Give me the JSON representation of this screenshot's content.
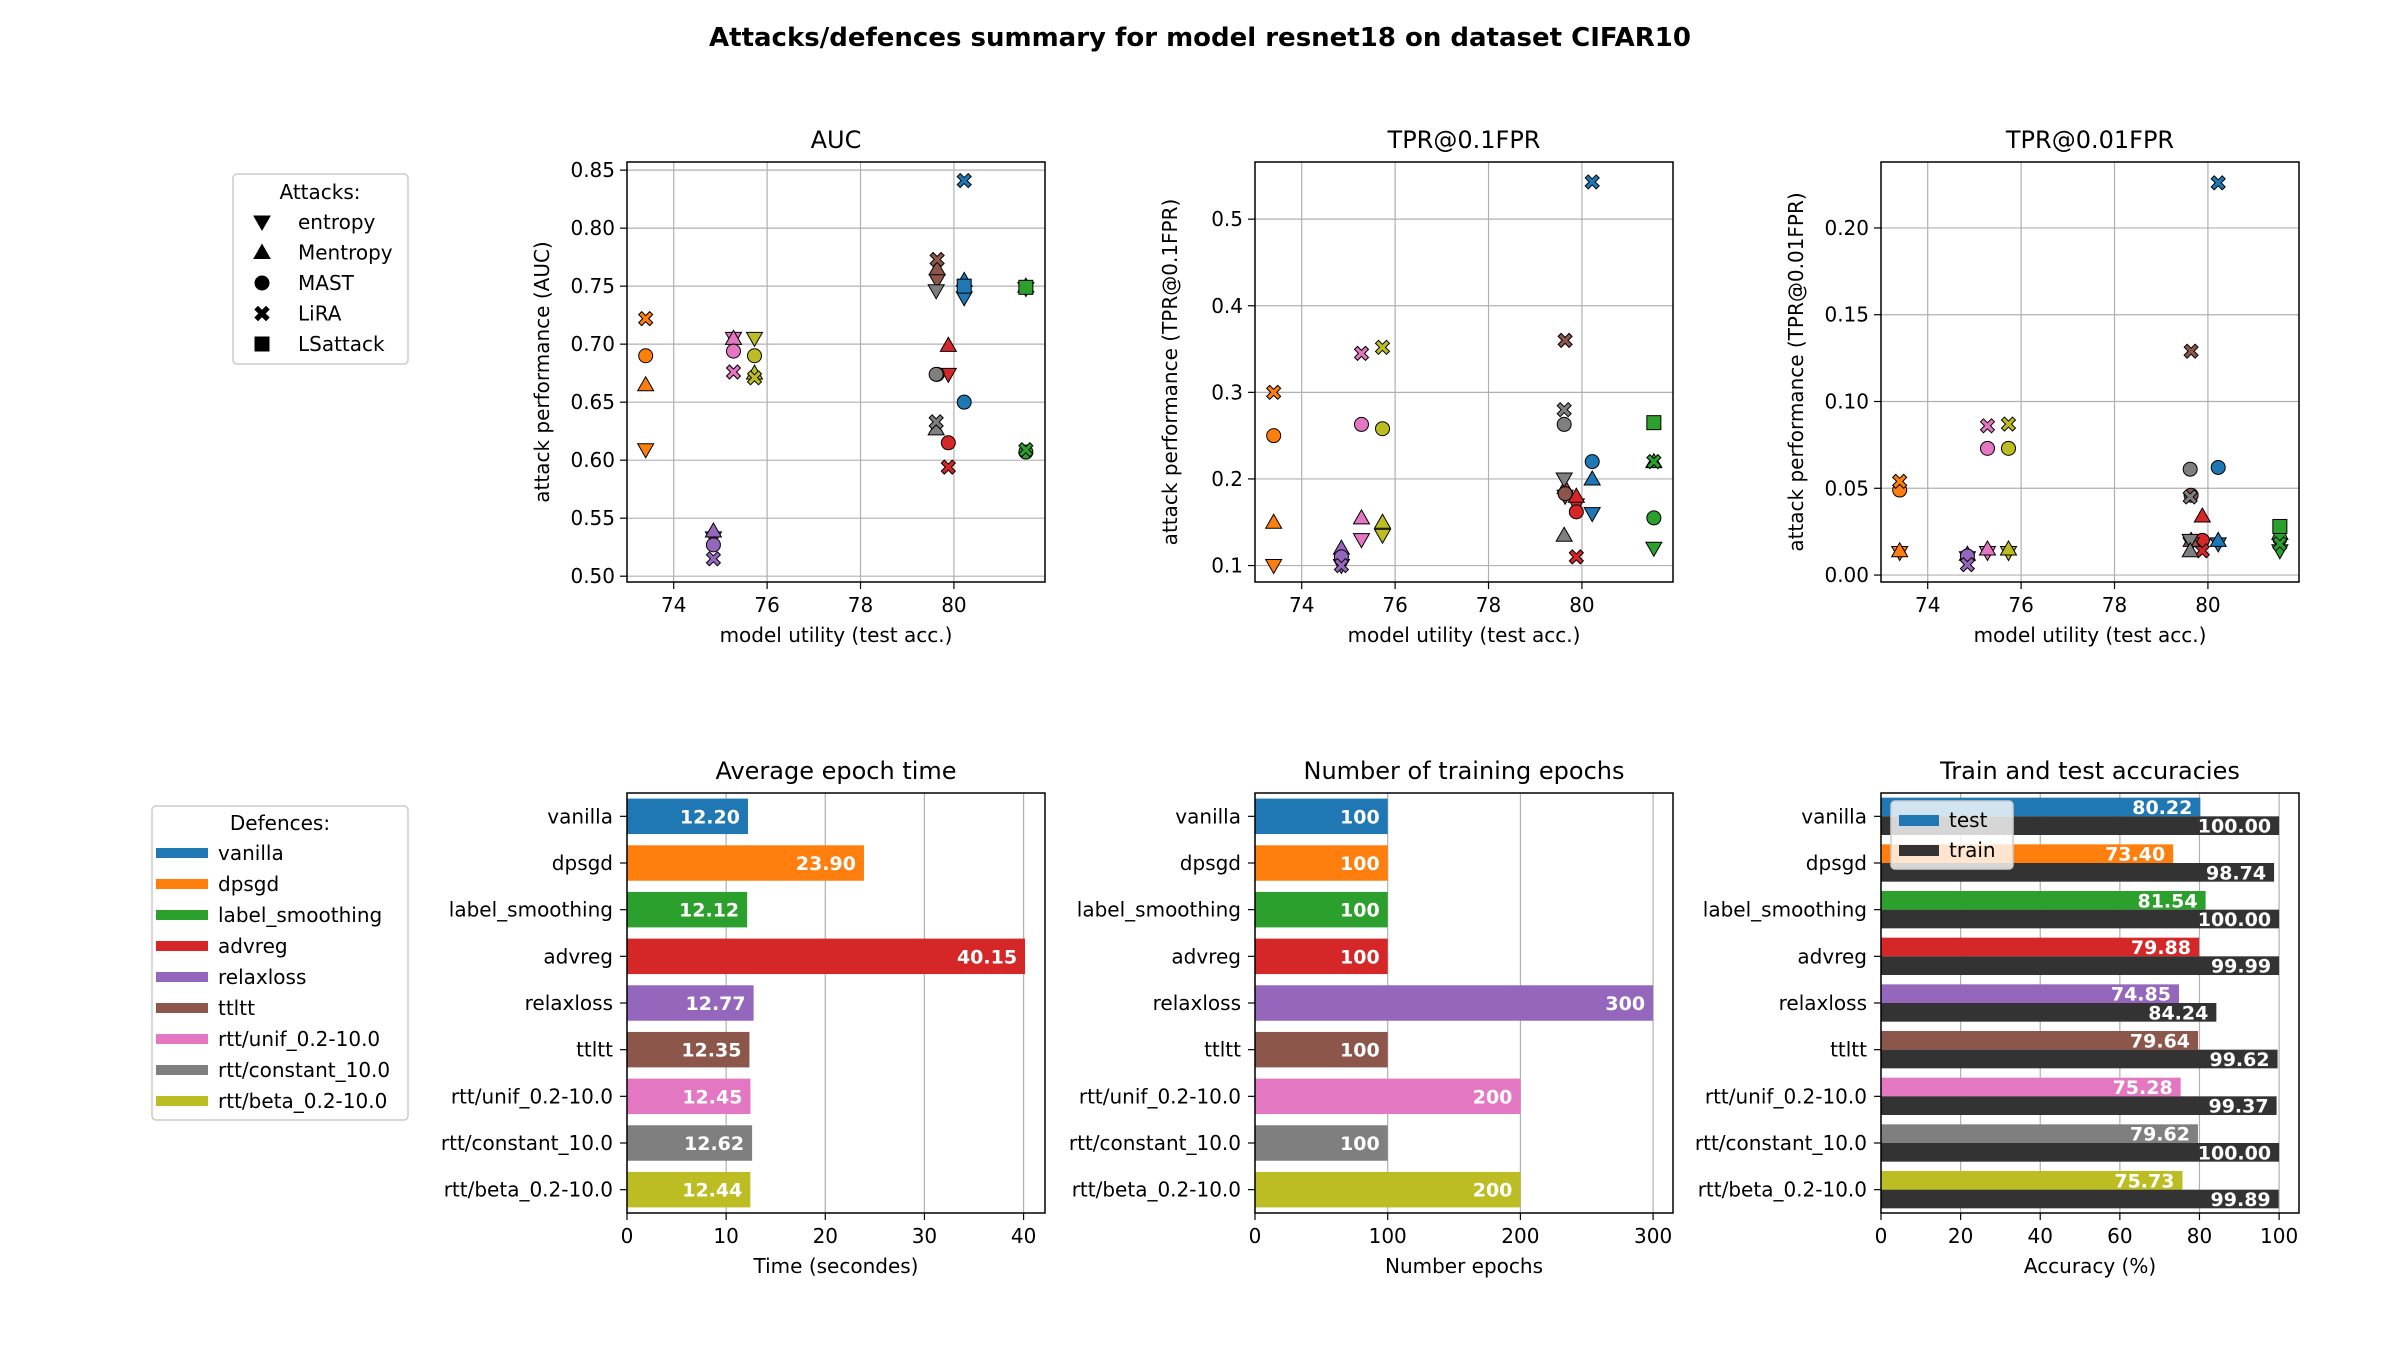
{
  "title": "Attacks/defences summary for model resnet18 on dataset CIFAR10",
  "attack_legend": {
    "title": "Attacks:",
    "items": [
      {
        "label": "entropy",
        "marker": "triangle-down"
      },
      {
        "label": "Mentropy",
        "marker": "triangle-up"
      },
      {
        "label": "MAST",
        "marker": "circle"
      },
      {
        "label": "LiRA",
        "marker": "x"
      },
      {
        "label": "LSattack",
        "marker": "square"
      }
    ]
  },
  "defence_legend": {
    "title": "Defences:",
    "items": [
      {
        "label": "vanilla",
        "color": "#1f77b4"
      },
      {
        "label": "dpsgd",
        "color": "#ff7f0e"
      },
      {
        "label": "label_smoothing",
        "color": "#2ca02c"
      },
      {
        "label": "advreg",
        "color": "#d62728"
      },
      {
        "label": "relaxloss",
        "color": "#9467bd"
      },
      {
        "label": "ttltt",
        "color": "#8c564b"
      },
      {
        "label": "rtt/unif_0.2-10.0",
        "color": "#e377c2"
      },
      {
        "label": "rtt/constant_10.0",
        "color": "#7f7f7f"
      },
      {
        "label": "rtt/beta_0.2-10.0",
        "color": "#bcbd22"
      }
    ]
  },
  "chart_data": [
    {
      "type": "scatter",
      "title": "AUC",
      "xlabel": "model utility (test acc.)",
      "ylabel": "attack performance (AUC)",
      "xlim": [
        73.0,
        81.95
      ],
      "ylim": [
        0.495,
        0.857
      ],
      "xticks": [
        74,
        76,
        78,
        80
      ],
      "yticks": [
        0.5,
        0.55,
        0.6,
        0.65,
        0.7,
        0.75,
        0.8,
        0.85
      ],
      "ytick_labels": [
        "0.50",
        "0.55",
        "0.60",
        "0.65",
        "0.70",
        "0.75",
        "0.80",
        "0.85"
      ],
      "points": [
        {
          "defence": "vanilla",
          "x": 80.22,
          "values": [
            0.74,
            0.755,
            0.65,
            0.841,
            0.75
          ]
        },
        {
          "defence": "dpsgd",
          "x": 73.4,
          "values": [
            0.609,
            0.665,
            0.69,
            0.722,
            null
          ]
        },
        {
          "defence": "label_smoothing",
          "x": 81.54,
          "values": [
            0.748,
            0.75,
            0.607,
            0.609,
            0.749
          ]
        },
        {
          "defence": "advreg",
          "x": 79.88,
          "values": [
            0.674,
            0.699,
            0.615,
            0.594,
            null
          ]
        },
        {
          "defence": "relaxloss",
          "x": 74.85,
          "values": [
            0.533,
            0.539,
            0.527,
            0.515,
            null
          ]
        },
        {
          "defence": "ttltt",
          "x": 79.64,
          "values": [
            0.755,
            0.765,
            0.674,
            0.773,
            null
          ]
        },
        {
          "defence": "rtt/unif_0.2-10.0",
          "x": 75.28,
          "values": [
            0.705,
            0.705,
            0.694,
            0.676,
            null
          ]
        },
        {
          "defence": "rtt/constant_10.0",
          "x": 79.62,
          "values": [
            0.746,
            0.627,
            0.674,
            0.633,
            null
          ]
        },
        {
          "defence": "rtt/beta_0.2-10.0",
          "x": 75.73,
          "values": [
            0.705,
            0.675,
            0.69,
            0.671,
            null
          ]
        }
      ]
    },
    {
      "type": "scatter",
      "title": "TPR@0.1FPR",
      "xlabel": "model utility (test acc.)",
      "ylabel": "attack performance (TPR@0.1FPR)",
      "xlim": [
        73.0,
        81.95
      ],
      "ylim": [
        0.081,
        0.566
      ],
      "xticks": [
        74,
        76,
        78,
        80
      ],
      "yticks": [
        0.1,
        0.2,
        0.3,
        0.4,
        0.5
      ],
      "ytick_labels": [
        "0.1",
        "0.2",
        "0.3",
        "0.4",
        "0.5"
      ],
      "points": [
        {
          "defence": "vanilla",
          "x": 80.22,
          "values": [
            0.16,
            0.2,
            0.22,
            0.543,
            null
          ]
        },
        {
          "defence": "dpsgd",
          "x": 73.4,
          "values": [
            0.1,
            0.15,
            0.25,
            0.3,
            null
          ]
        },
        {
          "defence": "label_smoothing",
          "x": 81.54,
          "values": [
            0.12,
            0.22,
            0.155,
            0.22,
            0.265
          ]
        },
        {
          "defence": "advreg",
          "x": 79.88,
          "values": [
            0.17,
            0.18,
            0.162,
            0.11,
            null
          ]
        },
        {
          "defence": "relaxloss",
          "x": 74.85,
          "values": [
            0.1,
            0.12,
            0.11,
            0.1,
            null
          ]
        },
        {
          "defence": "ttltt",
          "x": 79.64,
          "values": [
            0.18,
            0.19,
            0.183,
            0.36,
            null
          ]
        },
        {
          "defence": "rtt/unif_0.2-10.0",
          "x": 75.28,
          "values": [
            0.13,
            0.155,
            0.263,
            0.345,
            null
          ]
        },
        {
          "defence": "rtt/constant_10.0",
          "x": 79.62,
          "values": [
            0.2,
            0.135,
            0.263,
            0.28,
            null
          ]
        },
        {
          "defence": "rtt/beta_0.2-10.0",
          "x": 75.73,
          "values": [
            0.135,
            0.15,
            0.258,
            0.352,
            null
          ]
        }
      ]
    },
    {
      "type": "scatter",
      "title": "TPR@0.01FPR",
      "xlabel": "model utility (test acc.)",
      "ylabel": "attack performance (TPR@0.01FPR)",
      "xlim": [
        73.0,
        81.95
      ],
      "ylim": [
        -0.004,
        0.238
      ],
      "xticks": [
        74,
        76,
        78,
        80
      ],
      "yticks": [
        0.0,
        0.05,
        0.1,
        0.15,
        0.2
      ],
      "ytick_labels": [
        "0.00",
        "0.05",
        "0.10",
        "0.15",
        "0.20"
      ],
      "points": [
        {
          "defence": "vanilla",
          "x": 80.22,
          "values": [
            0.018,
            0.02,
            0.062,
            0.226,
            null
          ]
        },
        {
          "defence": "dpsgd",
          "x": 73.4,
          "values": [
            0.013,
            0.014,
            0.049,
            0.054,
            null
          ]
        },
        {
          "defence": "label_smoothing",
          "x": 81.54,
          "values": [
            0.014,
            0.024,
            0.021,
            0.018,
            0.028
          ]
        },
        {
          "defence": "advreg",
          "x": 79.88,
          "values": [
            0.017,
            0.034,
            0.02,
            0.014,
            null
          ]
        },
        {
          "defence": "relaxloss",
          "x": 74.85,
          "values": [
            0.01,
            0.012,
            0.011,
            0.006,
            null
          ]
        },
        {
          "defence": "ttltt",
          "x": 79.64,
          "values": [
            0.018,
            0.02,
            0.046,
            0.129,
            null
          ]
        },
        {
          "defence": "rtt/unif_0.2-10.0",
          "x": 75.28,
          "values": [
            0.013,
            0.015,
            0.073,
            0.086,
            null
          ]
        },
        {
          "defence": "rtt/constant_10.0",
          "x": 79.62,
          "values": [
            0.02,
            0.014,
            0.061,
            0.045,
            null
          ]
        },
        {
          "defence": "rtt/beta_0.2-10.0",
          "x": 75.73,
          "values": [
            0.013,
            0.015,
            0.073,
            0.087,
            null
          ]
        }
      ]
    },
    {
      "type": "bar",
      "orientation": "horizontal",
      "title": "Average epoch time",
      "xlabel": "Time (secondes)",
      "xlim": [
        0,
        42.16
      ],
      "xticks": [
        0,
        10,
        20,
        30,
        40
      ],
      "categories": [
        "vanilla",
        "dpsgd",
        "label_smoothing",
        "advreg",
        "relaxloss",
        "ttltt",
        "rtt/unif_0.2-10.0",
        "rtt/constant_10.0",
        "rtt/beta_0.2-10.0"
      ],
      "values": [
        12.2,
        23.9,
        12.12,
        40.15,
        12.77,
        12.35,
        12.45,
        12.62,
        12.44
      ],
      "labels": [
        "12.20",
        "23.90",
        "12.12",
        "40.15",
        "12.77",
        "12.35",
        "12.45",
        "12.62",
        "12.44"
      ]
    },
    {
      "type": "bar",
      "orientation": "horizontal",
      "title": "Number of training epochs",
      "xlabel": "Number epochs",
      "xlim": [
        0,
        315
      ],
      "xticks": [
        0,
        100,
        200,
        300
      ],
      "categories": [
        "vanilla",
        "dpsgd",
        "label_smoothing",
        "advreg",
        "relaxloss",
        "ttltt",
        "rtt/unif_0.2-10.0",
        "rtt/constant_10.0",
        "rtt/beta_0.2-10.0"
      ],
      "values": [
        100,
        100,
        100,
        100,
        300,
        100,
        200,
        100,
        200
      ],
      "labels": [
        "100",
        "100",
        "100",
        "100",
        "300",
        "100",
        "200",
        "100",
        "200"
      ]
    },
    {
      "type": "bar",
      "orientation": "horizontal",
      "title": "Train and test accuracies",
      "xlabel": "Accuracy (%)",
      "xlim": [
        0,
        105
      ],
      "xticks": [
        0,
        20,
        40,
        60,
        80,
        100
      ],
      "categories": [
        "vanilla",
        "dpsgd",
        "label_smoothing",
        "advreg",
        "relaxloss",
        "ttltt",
        "rtt/unif_0.2-10.0",
        "rtt/constant_10.0",
        "rtt/beta_0.2-10.0"
      ],
      "series": [
        {
          "name": "test",
          "values": [
            80.22,
            73.4,
            81.54,
            79.88,
            74.85,
            79.64,
            75.28,
            79.62,
            75.73
          ],
          "labels": [
            "80.22",
            "73.40",
            "81.54",
            "79.88",
            "74.85",
            "79.64",
            "75.28",
            "79.62",
            "75.73"
          ]
        },
        {
          "name": "train",
          "color": "#333333",
          "values": [
            100.0,
            98.74,
            100.0,
            99.99,
            84.24,
            99.62,
            99.37,
            100.0,
            99.89
          ],
          "labels": [
            "100.00",
            "98.74",
            "100.00",
            "99.99",
            "84.24",
            "99.62",
            "99.37",
            "100.00",
            "99.89"
          ]
        }
      ],
      "legend": "top-left"
    }
  ]
}
